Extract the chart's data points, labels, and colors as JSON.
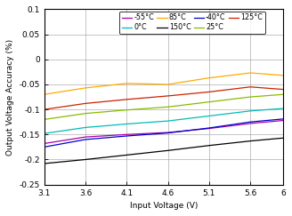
{
  "xlabel": "Input Voltage (V)",
  "ylabel": "Output Voltage Accuracy (%)",
  "xlim": [
    3.1,
    6.0
  ],
  "ylim": [
    -0.25,
    0.1
  ],
  "xticks": [
    3.1,
    3.6,
    4.1,
    4.6,
    5.1,
    5.6,
    6.0
  ],
  "yticks": [
    -0.25,
    -0.2,
    -0.15,
    -0.1,
    -0.05,
    0.0,
    0.05,
    0.1
  ],
  "series": [
    {
      "label": "-55°C",
      "color": "#aa00aa",
      "x": [
        3.1,
        3.6,
        4.1,
        4.6,
        5.1,
        5.6,
        6.0
      ],
      "y": [
        -0.168,
        -0.155,
        -0.15,
        -0.146,
        -0.138,
        -0.128,
        -0.122
      ]
    },
    {
      "label": "-40°C",
      "color": "#0000cc",
      "x": [
        3.1,
        3.6,
        4.1,
        4.6,
        5.1,
        5.6,
        6.0
      ],
      "y": [
        -0.175,
        -0.16,
        -0.153,
        -0.147,
        -0.137,
        -0.125,
        -0.119
      ]
    },
    {
      "label": "0°C",
      "color": "#00bbbb",
      "x": [
        3.1,
        3.6,
        4.1,
        4.6,
        5.1,
        5.6,
        6.0
      ],
      "y": [
        -0.148,
        -0.136,
        -0.129,
        -0.123,
        -0.113,
        -0.103,
        -0.098
      ]
    },
    {
      "label": "25°C",
      "color": "#88bb00",
      "x": [
        3.1,
        3.6,
        4.1,
        4.6,
        5.1,
        5.6,
        6.0
      ],
      "y": [
        -0.12,
        -0.108,
        -0.101,
        -0.095,
        -0.085,
        -0.075,
        -0.07
      ]
    },
    {
      "label": "85°C",
      "color": "#ffaa00",
      "x": [
        3.1,
        3.6,
        4.1,
        4.6,
        5.1,
        5.6,
        6.0
      ],
      "y": [
        -0.07,
        -0.057,
        -0.048,
        -0.05,
        -0.037,
        -0.027,
        -0.032
      ]
    },
    {
      "label": "125°C",
      "color": "#cc2200",
      "x": [
        3.1,
        3.6,
        4.1,
        4.6,
        5.1,
        5.6,
        6.0
      ],
      "y": [
        -0.1,
        -0.088,
        -0.08,
        -0.073,
        -0.065,
        -0.055,
        -0.06
      ]
    },
    {
      "label": "150°C",
      "color": "#000000",
      "x": [
        3.1,
        3.6,
        4.1,
        4.6,
        5.1,
        5.6,
        6.0
      ],
      "y": [
        -0.208,
        -0.2,
        -0.191,
        -0.182,
        -0.172,
        -0.163,
        -0.157
      ]
    }
  ],
  "row1_order": [
    0,
    2,
    4,
    6
  ],
  "row2_order": [
    1,
    3,
    5
  ],
  "background_color": "#ffffff",
  "grid_color": "#999999",
  "font_size": 6.5,
  "tick_font_size": 6.5
}
